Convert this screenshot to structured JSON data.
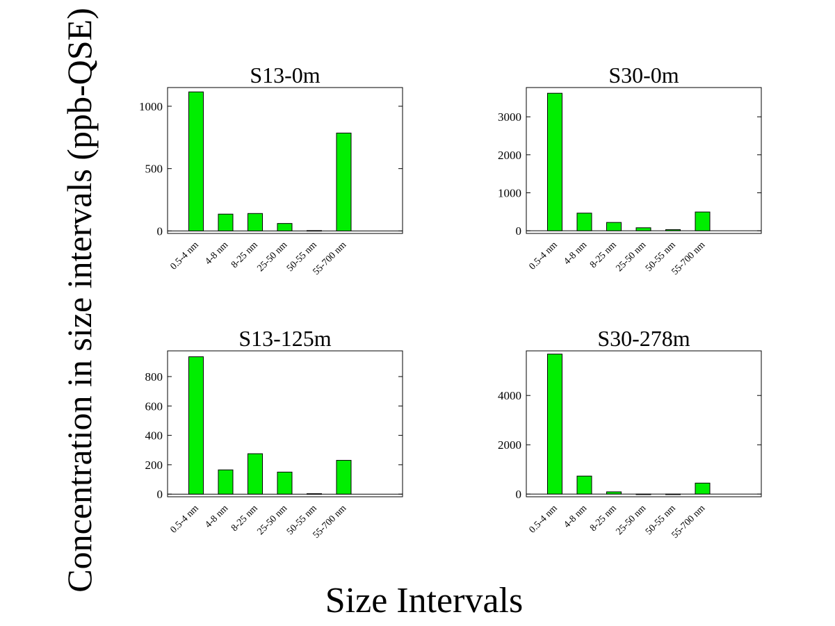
{
  "figure": {
    "ylabel": "Concentration in size intervals (ppb-QSE)",
    "xlabel": "Size Intervals"
  },
  "chart_data": [
    {
      "type": "bar",
      "title": "S13-0m",
      "categories": [
        "0.5-4 nm",
        "4-8 nm",
        "8-25 nm",
        "25-50 nm",
        "50-55 nm",
        "55-700 nm"
      ],
      "values": [
        1115,
        135,
        140,
        60,
        3,
        785
      ],
      "ylim": [
        -20,
        1150
      ],
      "yticks": [
        0,
        500,
        1000
      ],
      "bar_color": "#00ee00"
    },
    {
      "type": "bar",
      "title": "S30-0m",
      "categories": [
        "0.5-4 nm",
        "4-8 nm",
        "8-25 nm",
        "25-50 nm",
        "50-55 nm",
        "55-700 nm"
      ],
      "values": [
        3620,
        465,
        220,
        80,
        30,
        495
      ],
      "ylim": [
        -70,
        3770
      ],
      "yticks": [
        0,
        1000,
        2000,
        3000
      ],
      "bar_color": "#00ee00"
    },
    {
      "type": "bar",
      "title": "S13-125m",
      "categories": [
        "0.5-4 nm",
        "4-8 nm",
        "8-25 nm",
        "25-50 nm",
        "50-55 nm",
        "55-700 nm"
      ],
      "values": [
        935,
        165,
        275,
        150,
        3,
        230
      ],
      "ylim": [
        -18,
        975
      ],
      "yticks": [
        0,
        200,
        400,
        600,
        800
      ],
      "bar_color": "#00ee00"
    },
    {
      "type": "bar",
      "title": "S30-278m",
      "categories": [
        "0.5-4 nm",
        "4-8 nm",
        "8-25 nm",
        "25-50 nm",
        "50-55 nm",
        "55-700 nm"
      ],
      "values": [
        5680,
        730,
        90,
        0,
        0,
        445
      ],
      "ylim": [
        -110,
        5810
      ],
      "yticks": [
        0,
        2000,
        4000
      ],
      "bar_color": "#00ee00"
    }
  ]
}
